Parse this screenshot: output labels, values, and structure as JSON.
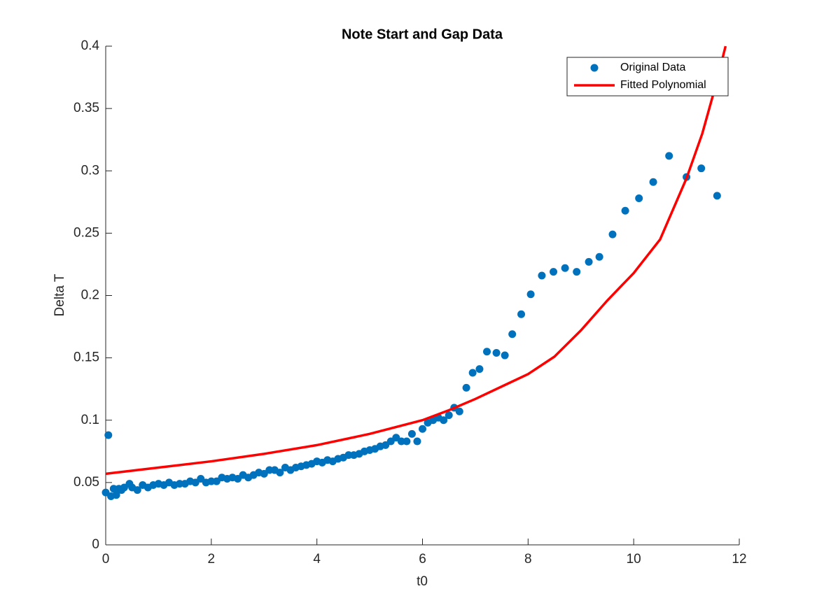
{
  "chart_data": {
    "type": "scatter",
    "title": "Note Start and Gap Data",
    "x_label": "t0",
    "y_label": "Delta T",
    "xlim": [
      0,
      12
    ],
    "xticks": [
      0,
      2,
      4,
      6,
      8,
      10,
      12
    ],
    "ylim": [
      0,
      0.4
    ],
    "yticks": [
      0,
      0.05,
      0.1,
      0.15,
      0.2,
      0.25,
      0.3,
      0.35,
      0.4
    ],
    "legend_position": "northeast",
    "series": [
      {
        "name": "Original Data",
        "color": "#0072bd",
        "style": "markers",
        "x": [
          0,
          0.05,
          0.1,
          0.15,
          0.2,
          0.25,
          0.3,
          0.35,
          0.45,
          0.5,
          0.6,
          0.7,
          0.8,
          0.9,
          1.0,
          1.1,
          1.2,
          1.3,
          1.4,
          1.5,
          1.6,
          1.7,
          1.8,
          1.9,
          2.0,
          2.1,
          2.2,
          2.3,
          2.4,
          2.5,
          2.6,
          2.7,
          2.8,
          2.9,
          3.0,
          3.1,
          3.2,
          3.3,
          3.4,
          3.5,
          3.6,
          3.7,
          3.8,
          3.9,
          4.0,
          4.1,
          4.2,
          4.3,
          4.4,
          4.5,
          4.6,
          4.7,
          4.8,
          4.9,
          5.0,
          5.1,
          5.2,
          5.3,
          5.4,
          5.5,
          5.6,
          5.7,
          5.8,
          5.9,
          6.0,
          6.1,
          6.2,
          6.3,
          6.4,
          6.5,
          6.6,
          6.7,
          6.83,
          6.95,
          7.08,
          7.22,
          7.4,
          7.56,
          7.7,
          7.87,
          8.05,
          8.26,
          8.48,
          8.7,
          8.92,
          9.15,
          9.35,
          9.6,
          9.84,
          10.1,
          10.37,
          10.67,
          11.0,
          11.28,
          11.58
        ],
        "values": [
          0.042,
          0.088,
          0.039,
          0.045,
          0.04,
          0.045,
          0.044,
          0.046,
          0.049,
          0.046,
          0.044,
          0.048,
          0.046,
          0.048,
          0.049,
          0.048,
          0.05,
          0.048,
          0.049,
          0.049,
          0.051,
          0.05,
          0.053,
          0.05,
          0.051,
          0.051,
          0.054,
          0.053,
          0.054,
          0.053,
          0.056,
          0.054,
          0.056,
          0.058,
          0.057,
          0.06,
          0.06,
          0.058,
          0.062,
          0.06,
          0.062,
          0.063,
          0.064,
          0.065,
          0.067,
          0.066,
          0.068,
          0.067,
          0.069,
          0.07,
          0.072,
          0.072,
          0.073,
          0.075,
          0.076,
          0.077,
          0.079,
          0.08,
          0.083,
          0.086,
          0.083,
          0.083,
          0.089,
          0.083,
          0.093,
          0.098,
          0.1,
          0.102,
          0.1,
          0.104,
          0.11,
          0.107,
          0.126,
          0.138,
          0.141,
          0.155,
          0.154,
          0.152,
          0.169,
          0.185,
          0.201,
          0.216,
          0.219,
          0.222,
          0.219,
          0.227,
          0.231,
          0.249,
          0.268,
          0.278,
          0.291,
          0.312,
          0.295,
          0.302,
          0.28
        ]
      },
      {
        "name": "Fitted Polynomial",
        "color": "#ff0000",
        "style": "line",
        "x": [
          0,
          1,
          2,
          3,
          4,
          5,
          6,
          6.5,
          7,
          7.5,
          8,
          8.5,
          9,
          9.5,
          10,
          10.5,
          11,
          11.3,
          11.55,
          11.74
        ],
        "values": [
          0.057,
          0.062,
          0.067,
          0.073,
          0.08,
          0.089,
          0.1,
          0.108,
          0.117,
          0.127,
          0.137,
          0.151,
          0.172,
          0.196,
          0.218,
          0.245,
          0.294,
          0.33,
          0.368,
          0.4
        ]
      }
    ]
  }
}
